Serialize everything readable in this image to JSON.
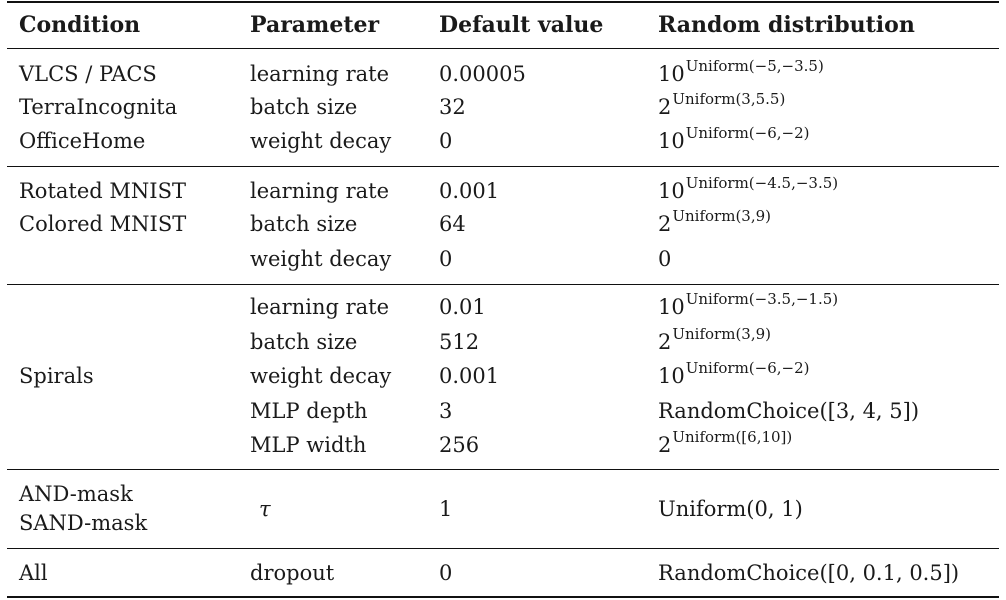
{
  "headers": [
    "Condition",
    "Parameter",
    "Default value",
    "Random distribution"
  ],
  "groups": [
    {
      "conditions": [
        "VLCS / PACS",
        "TerraIncognita",
        "OfficeHome"
      ],
      "rows": [
        {
          "param": "learning rate",
          "default": "0.00005",
          "dist": {
            "base": "10",
            "sup": "Uniform(−5,−3.5)"
          }
        },
        {
          "param": "batch size",
          "default": "32",
          "dist": {
            "base": "2",
            "sup": "Uniform(3,5.5)"
          }
        },
        {
          "param": "weight decay",
          "default": "0",
          "dist": {
            "base": "10",
            "sup": "Uniform(−6,−2)"
          }
        }
      ]
    },
    {
      "conditions": [
        "Rotated MNIST",
        "Colored MNIST"
      ],
      "rows": [
        {
          "param": "learning rate",
          "default": "0.001",
          "dist": {
            "base": "10",
            "sup": "Uniform(−4.5,−3.5)"
          }
        },
        {
          "param": "batch size",
          "default": "64",
          "dist": {
            "base": "2",
            "sup": "Uniform(3,9)"
          }
        },
        {
          "param": "weight decay",
          "default": "0",
          "dist": {
            "text": "0"
          }
        }
      ]
    },
    {
      "conditions": [
        "Spirals"
      ],
      "rows": [
        {
          "param": "learning rate",
          "default": "0.01",
          "dist": {
            "base": "10",
            "sup": "Uniform(−3.5,−1.5)"
          }
        },
        {
          "param": "batch size",
          "default": "512",
          "dist": {
            "base": "2",
            "sup": "Uniform(3,9)"
          }
        },
        {
          "param": "weight decay",
          "default": "0.001",
          "dist": {
            "base": "10",
            "sup": "Uniform(−6,−2)"
          }
        },
        {
          "param": "MLP depth",
          "default": "3",
          "dist": {
            "text": "RandomChoice([3, 4, 5])"
          }
        },
        {
          "param": "MLP width",
          "default": "256",
          "dist": {
            "base": "2",
            "sup": "Uniform([6,10])"
          }
        }
      ]
    },
    {
      "conditions": [
        "AND-mask",
        "SAND-mask"
      ],
      "rows": [
        {
          "param": "τ",
          "default": "1",
          "dist": {
            "text": "Uniform(0, 1)"
          }
        }
      ]
    },
    {
      "conditions": [
        "All"
      ],
      "rows": [
        {
          "param": "dropout",
          "default": "0",
          "dist": {
            "text": "RandomChoice([0, 0.1, 0.5])"
          }
        }
      ]
    }
  ]
}
